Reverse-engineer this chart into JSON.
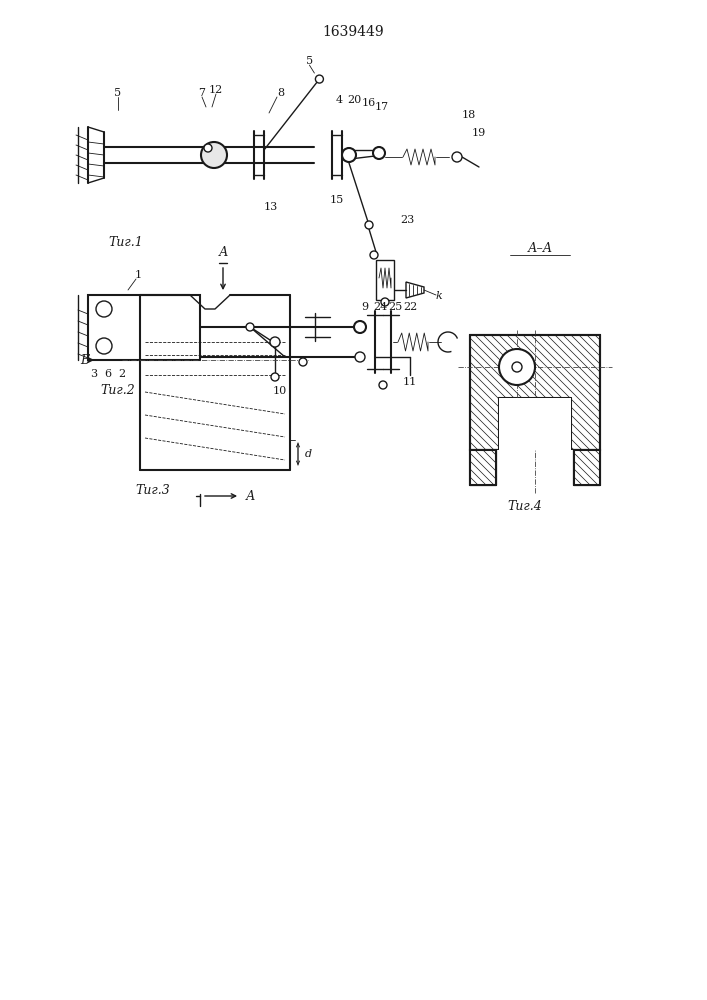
{
  "title": "1639449",
  "bg_color": "#ffffff",
  "line_color": "#1a1a1a",
  "fig1_label": "Τиг.1",
  "fig2_label": "Τиг.2",
  "fig3_label": "Τиг.3",
  "fig4_label": "Τиг.4",
  "section_label": "А–А",
  "arrow_A": "А",
  "arrow_B": "Б",
  "label_d": "d",
  "label_k": "k"
}
